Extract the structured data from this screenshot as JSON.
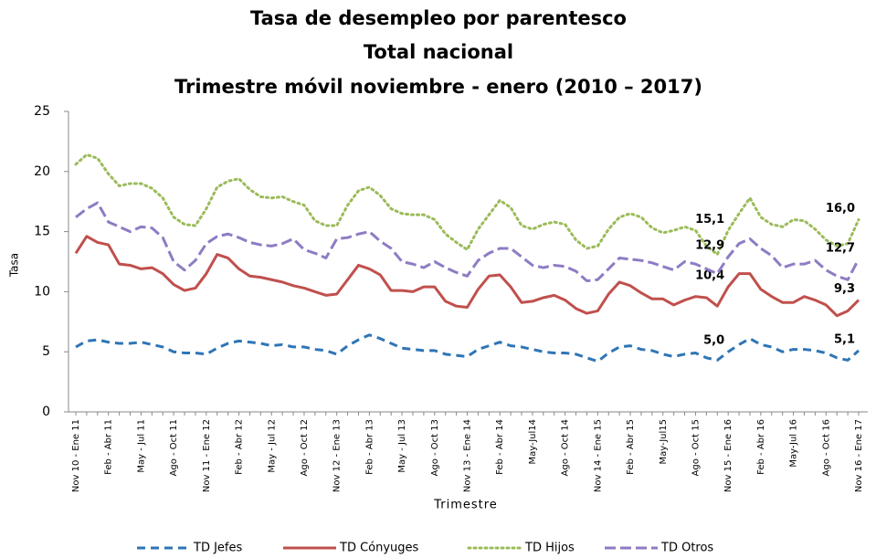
{
  "chart_data": {
    "type": "line",
    "title": [
      "Tasa de desempleo por parentesco",
      "Total nacional",
      "Trimestre móvil noviembre - enero (2010 – 2017)"
    ],
    "y_label": "Tasa",
    "x_label": "Trimestre",
    "categories": [
      "Nov 10 - Ene 11",
      null,
      null,
      "Feb - Abr 11",
      null,
      null,
      "May - Jul 11",
      null,
      null,
      "Ago - Oct 11",
      null,
      null,
      "Nov 11 - Ene 12",
      null,
      null,
      "Feb - Abr 12",
      null,
      null,
      "May - Jul 12",
      null,
      null,
      "Ago - Oct 12",
      null,
      null,
      "Nov 12 - Ene 13",
      null,
      null,
      "Feb - Abr 13",
      null,
      null,
      "May - Jul 13",
      null,
      null,
      "Ago - Oct 13",
      null,
      null,
      "Nov 13 - Ene 14",
      null,
      null,
      "Feb - Abr 14",
      null,
      null,
      "May-Jul14",
      null,
      null,
      "Ago - Oct 14",
      null,
      null,
      "Nov 14 - Ene 15",
      null,
      null,
      "Feb - Abr 15",
      null,
      null,
      "May-Jul15",
      null,
      null,
      "Ago - Oct 15",
      null,
      null,
      "Nov 15 - Ene 16",
      null,
      null,
      "Feb - Abr 16",
      null,
      null,
      "May-Jul 16",
      null,
      null,
      "Ago - Oct 16",
      null,
      null,
      "Nov 16 - Ene 17"
    ],
    "ylim": [
      0,
      25
    ],
    "yticks": [
      0,
      5,
      10,
      15,
      20,
      25
    ],
    "grid": false,
    "series": [
      {
        "name": "TD Jefes",
        "color": "#2e75b6",
        "dash": "dashed",
        "values": [
          5.4,
          5.9,
          6.0,
          5.8,
          5.7,
          5.7,
          5.8,
          5.6,
          5.4,
          5.0,
          4.9,
          4.9,
          4.8,
          5.3,
          5.7,
          5.9,
          5.8,
          5.7,
          5.5,
          5.6,
          5.4,
          5.4,
          5.2,
          5.1,
          4.8,
          5.5,
          6.0,
          6.4,
          6.1,
          5.7,
          5.3,
          5.2,
          5.1,
          5.1,
          4.8,
          4.7,
          4.6,
          5.2,
          5.5,
          5.8,
          5.5,
          5.4,
          5.2,
          5.0,
          4.9,
          4.9,
          4.8,
          4.5,
          4.2,
          4.9,
          5.4,
          5.5,
          5.2,
          5.1,
          4.8,
          4.6,
          4.8,
          4.9,
          4.5,
          4.3,
          5.0,
          5.6,
          6.1,
          5.6,
          5.4,
          5.0,
          5.2,
          5.2,
          5.1,
          4.9,
          4.5,
          4.3,
          5.1
        ],
        "value_labels": [
          null,
          null,
          null,
          null,
          null,
          null,
          null,
          null,
          null,
          null,
          null,
          null,
          null,
          null,
          null,
          null,
          null,
          null,
          null,
          null,
          null,
          null,
          null,
          null,
          null,
          null,
          null,
          null,
          null,
          null,
          null,
          null,
          null,
          null,
          null,
          null,
          null,
          null,
          null,
          null,
          null,
          null,
          null,
          null,
          null,
          null,
          null,
          null,
          null,
          null,
          null,
          null,
          null,
          null,
          null,
          null,
          null,
          null,
          null,
          null,
          "5,0",
          null,
          null,
          null,
          null,
          null,
          null,
          null,
          null,
          null,
          null,
          null,
          "5,1"
        ]
      },
      {
        "name": "TD Cónyuges",
        "color": "#c0504d",
        "dash": "solid",
        "values": [
          13.2,
          14.6,
          14.1,
          13.9,
          12.3,
          12.2,
          11.9,
          12.0,
          11.5,
          10.6,
          10.1,
          10.3,
          11.5,
          13.1,
          12.8,
          11.9,
          11.3,
          11.2,
          11.0,
          10.8,
          10.5,
          10.3,
          10.0,
          9.7,
          9.8,
          11.0,
          12.2,
          11.9,
          11.4,
          10.1,
          10.1,
          10.0,
          10.4,
          10.4,
          9.2,
          8.8,
          8.7,
          10.2,
          11.3,
          11.4,
          10.4,
          9.1,
          9.2,
          9.5,
          9.7,
          9.3,
          8.6,
          8.2,
          8.4,
          9.8,
          10.8,
          10.5,
          9.9,
          9.4,
          9.4,
          8.9,
          9.3,
          9.6,
          9.5,
          8.8,
          10.4,
          11.5,
          11.5,
          10.2,
          9.6,
          9.1,
          9.1,
          9.6,
          9.3,
          8.9,
          8.0,
          8.4,
          9.3
        ],
        "value_labels": [
          null,
          null,
          null,
          null,
          null,
          null,
          null,
          null,
          null,
          null,
          null,
          null,
          null,
          null,
          null,
          null,
          null,
          null,
          null,
          null,
          null,
          null,
          null,
          null,
          null,
          null,
          null,
          null,
          null,
          null,
          null,
          null,
          null,
          null,
          null,
          null,
          null,
          null,
          null,
          null,
          null,
          null,
          null,
          null,
          null,
          null,
          null,
          null,
          null,
          null,
          null,
          null,
          null,
          null,
          null,
          null,
          null,
          null,
          null,
          null,
          "10,4",
          null,
          null,
          null,
          null,
          null,
          null,
          null,
          null,
          null,
          null,
          null,
          "9,3"
        ]
      },
      {
        "name": "TD Hijos",
        "color": "#9bbb59",
        "dash": "dotted",
        "values": [
          20.6,
          21.4,
          21.1,
          19.8,
          18.8,
          19.0,
          19.0,
          18.6,
          17.8,
          16.2,
          15.6,
          15.5,
          16.9,
          18.7,
          19.2,
          19.4,
          18.5,
          17.9,
          17.8,
          17.9,
          17.5,
          17.2,
          15.9,
          15.5,
          15.5,
          17.2,
          18.4,
          18.7,
          18.0,
          16.9,
          16.5,
          16.4,
          16.4,
          16.0,
          14.8,
          14.1,
          13.5,
          15.2,
          16.4,
          17.6,
          17.0,
          15.5,
          15.2,
          15.6,
          15.8,
          15.6,
          14.3,
          13.6,
          13.8,
          15.2,
          16.2,
          16.5,
          16.2,
          15.3,
          14.9,
          15.1,
          15.4,
          15.1,
          13.8,
          13.1,
          15.1,
          16.5,
          17.8,
          16.2,
          15.6,
          15.4,
          16.0,
          15.9,
          15.2,
          14.3,
          13.8,
          14.0,
          16.0
        ],
        "value_labels": [
          null,
          null,
          null,
          null,
          null,
          null,
          null,
          null,
          null,
          null,
          null,
          null,
          null,
          null,
          null,
          null,
          null,
          null,
          null,
          null,
          null,
          null,
          null,
          null,
          null,
          null,
          null,
          null,
          null,
          null,
          null,
          null,
          null,
          null,
          null,
          null,
          null,
          null,
          null,
          null,
          null,
          null,
          null,
          null,
          null,
          null,
          null,
          null,
          null,
          null,
          null,
          null,
          null,
          null,
          null,
          null,
          null,
          null,
          null,
          null,
          "15,1",
          null,
          null,
          null,
          null,
          null,
          null,
          null,
          null,
          null,
          null,
          null,
          "16,0"
        ]
      },
      {
        "name": "TD Otros",
        "color": "#8e7cc3",
        "dash": "long-dash",
        "values": [
          16.2,
          16.9,
          17.4,
          15.8,
          15.4,
          15.0,
          15.4,
          15.3,
          14.5,
          12.5,
          11.8,
          12.6,
          14.0,
          14.6,
          14.8,
          14.5,
          14.1,
          13.9,
          13.8,
          14.0,
          14.4,
          13.5,
          13.2,
          12.8,
          14.4,
          14.5,
          14.8,
          15.0,
          14.2,
          13.6,
          12.5,
          12.3,
          12.0,
          12.5,
          12.0,
          11.6,
          11.3,
          12.6,
          13.2,
          13.6,
          13.6,
          12.9,
          12.2,
          12.0,
          12.2,
          12.1,
          11.7,
          10.9,
          11.0,
          11.9,
          12.8,
          12.7,
          12.6,
          12.4,
          12.1,
          11.8,
          12.5,
          12.3,
          11.9,
          11.5,
          12.9,
          14.0,
          14.4,
          13.6,
          13.0,
          12.0,
          12.3,
          12.3,
          12.6,
          11.8,
          11.3,
          11.0,
          12.7
        ],
        "value_labels": [
          null,
          null,
          null,
          null,
          null,
          null,
          null,
          null,
          null,
          null,
          null,
          null,
          null,
          null,
          null,
          null,
          null,
          null,
          null,
          null,
          null,
          null,
          null,
          null,
          null,
          null,
          null,
          null,
          null,
          null,
          null,
          null,
          null,
          null,
          null,
          null,
          null,
          null,
          null,
          null,
          null,
          null,
          null,
          null,
          null,
          null,
          null,
          null,
          null,
          null,
          null,
          null,
          null,
          null,
          null,
          null,
          null,
          null,
          null,
          null,
          "12,9",
          null,
          null,
          null,
          null,
          null,
          null,
          null,
          null,
          null,
          null,
          null,
          "12,7"
        ]
      }
    ]
  }
}
